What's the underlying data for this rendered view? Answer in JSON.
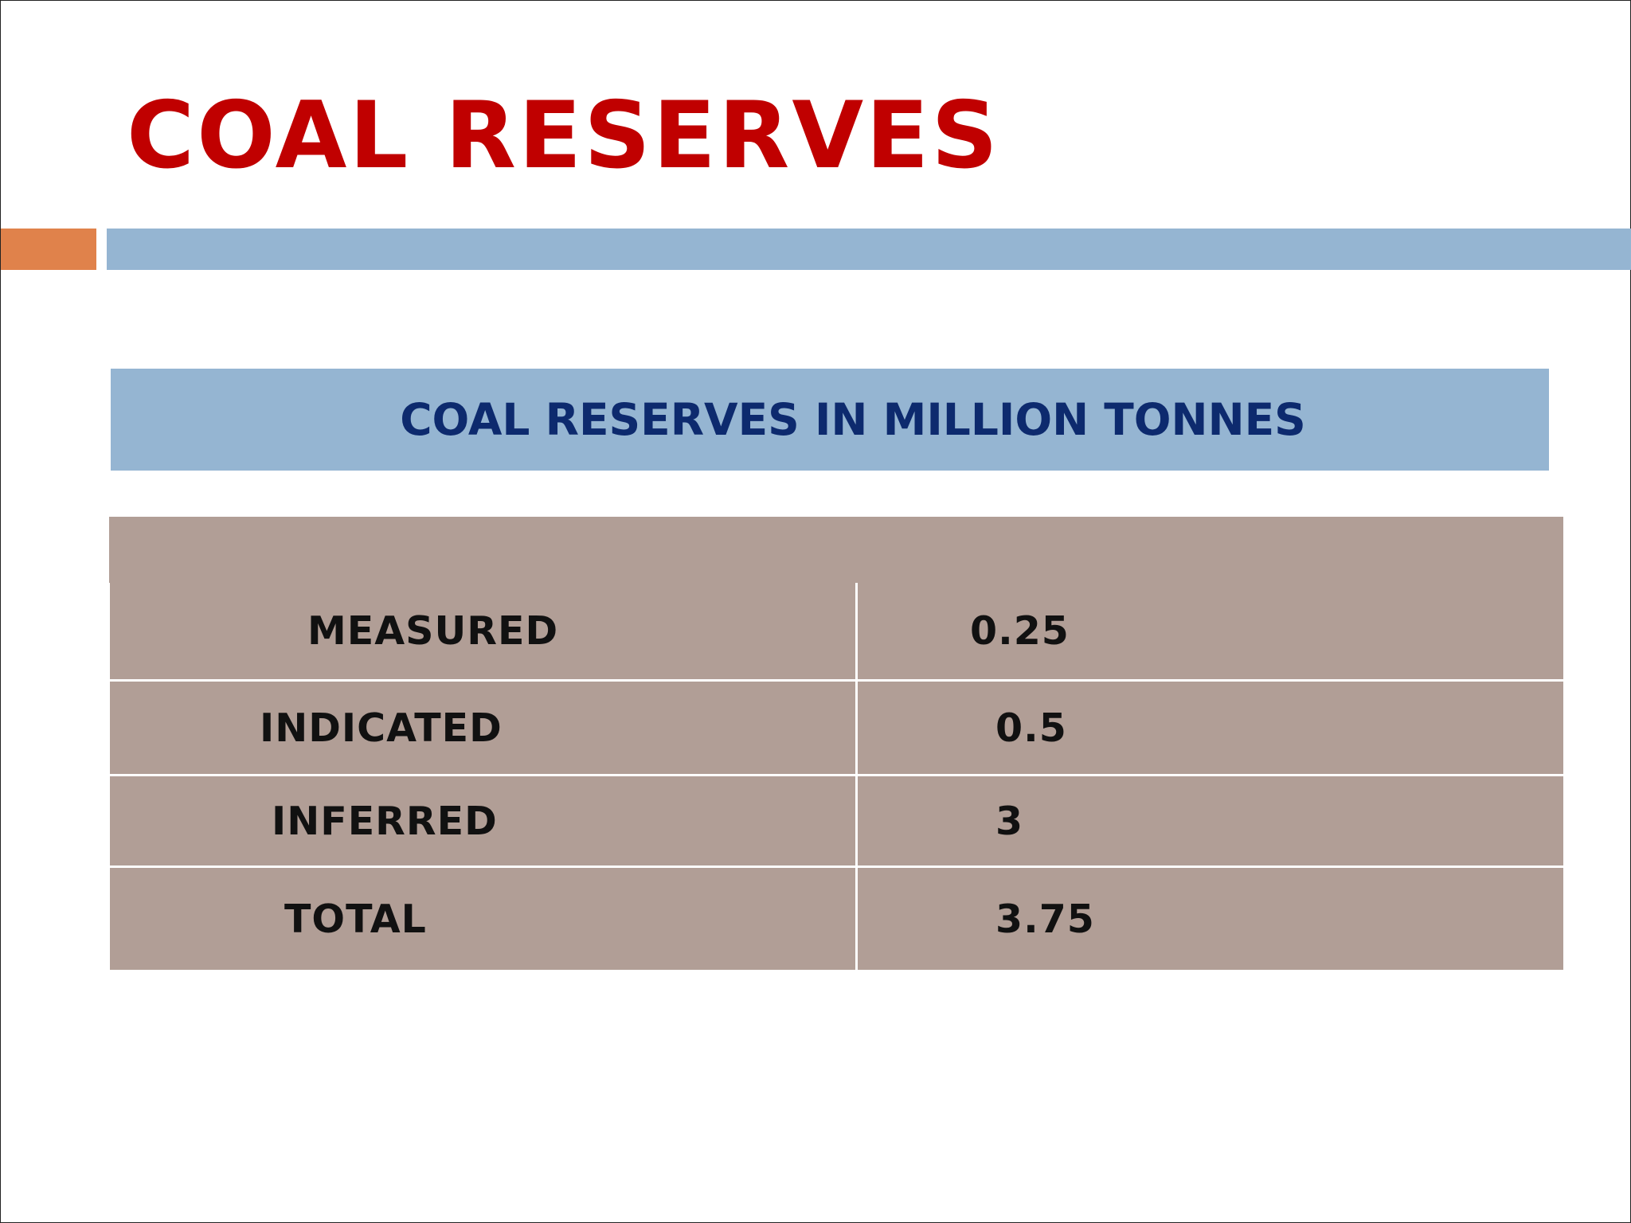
{
  "slide": {
    "title": "COAL RESERVES",
    "caption": "COAL RESERVES IN MILLION TONNES"
  },
  "table": {
    "rows": [
      {
        "label": "MEASURED",
        "value": "0.25"
      },
      {
        "label": "INDICATED",
        "value": "0.5"
      },
      {
        "label": "INFERRED",
        "value": "3"
      },
      {
        "label": "TOTAL",
        "value": "3.75"
      }
    ]
  },
  "colors": {
    "title": "#c00000",
    "caption_text": "#0d2a6e",
    "caption_bg": "#95b5d2",
    "accent_orange": "#e0824b",
    "accent_blue": "#95b5d2",
    "table_bg": "#b19e96"
  }
}
